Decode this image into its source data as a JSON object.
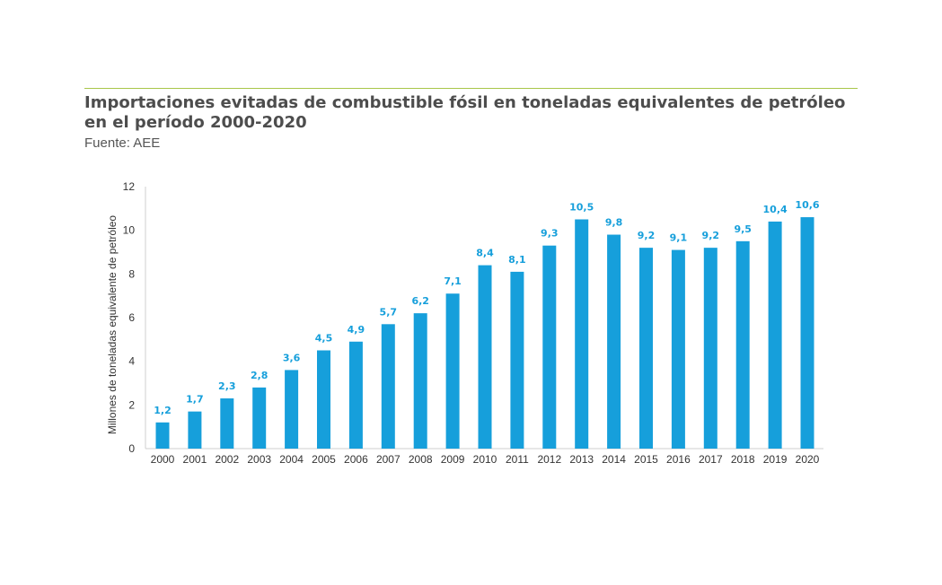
{
  "header": {
    "title": "Importaciones evitadas de combustible fósil en toneladas equivalentes de petróleo en el período 2000-2020",
    "source": "Fuente: AEE"
  },
  "colors": {
    "bar": "#169fdb",
    "label": "#169fdb",
    "rule": "#a8c64a"
  },
  "chart_data": {
    "type": "bar",
    "title": "Importaciones evitadas de combustible fósil en toneladas equivalentes de petróleo en el período 2000-2020",
    "ylabel": "Millones de toneladas equivalente de petróleo",
    "xlabel": "",
    "ylim": [
      0,
      12
    ],
    "yticks": [
      0,
      2,
      4,
      6,
      8,
      10,
      12
    ],
    "grid": false,
    "categories": [
      "2000",
      "2001",
      "2002",
      "2003",
      "2004",
      "2005",
      "2006",
      "2007",
      "2008",
      "2009",
      "2010",
      "2011",
      "2012",
      "2013",
      "2014",
      "2015",
      "2016",
      "2017",
      "2018",
      "2019",
      "2020"
    ],
    "values": [
      1.2,
      1.7,
      2.3,
      2.8,
      3.6,
      4.5,
      4.9,
      5.7,
      6.2,
      7.1,
      8.4,
      8.1,
      9.3,
      10.5,
      9.8,
      9.2,
      9.1,
      9.2,
      9.5,
      10.4,
      10.6
    ],
    "data_labels": [
      "1,2",
      "1,7",
      "2,3",
      "2,8",
      "3,6",
      "4,5",
      "4,9",
      "5,7",
      "6,2",
      "7,1",
      "8,4",
      "8,1",
      "9,3",
      "10,5",
      "9,8",
      "9,2",
      "9,1",
      "9,2",
      "9,5",
      "10,4",
      "10,6"
    ]
  }
}
